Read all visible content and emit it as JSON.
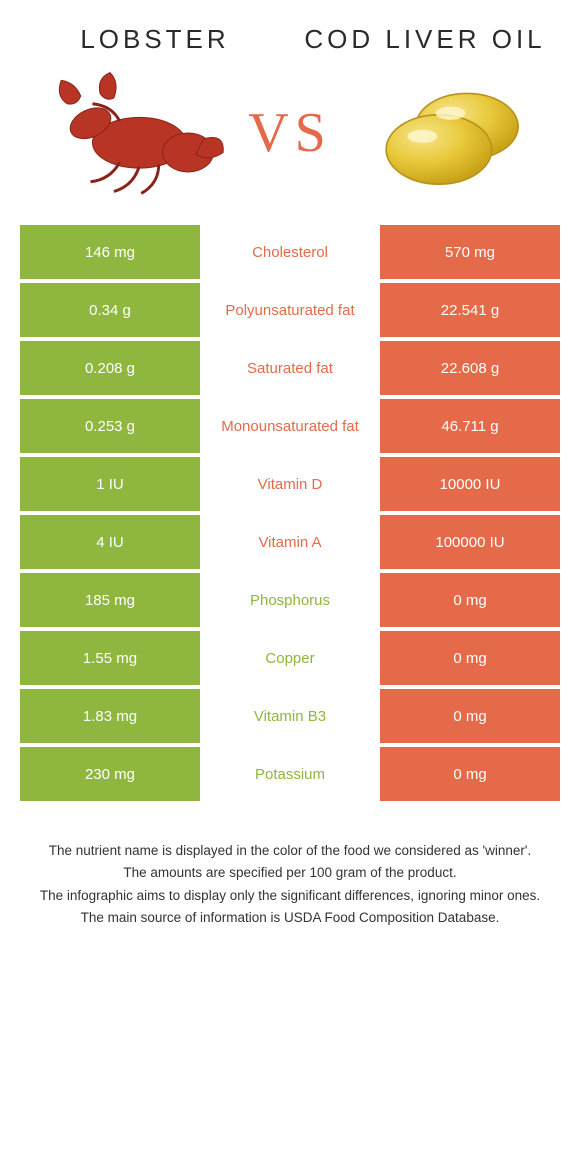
{
  "header": {
    "left_title": "Lobster",
    "right_title": "Cod liver oil",
    "vs": "VS"
  },
  "colors": {
    "green": "#8fb63f",
    "orange": "#e46a4a"
  },
  "rows": [
    {
      "left": "146 mg",
      "label": "Cholesterol",
      "right": "570 mg",
      "winner": "orange"
    },
    {
      "left": "0.34 g",
      "label": "Polyunsaturated fat",
      "right": "22.541 g",
      "winner": "orange"
    },
    {
      "left": "0.208 g",
      "label": "Saturated fat",
      "right": "22.608 g",
      "winner": "orange"
    },
    {
      "left": "0.253 g",
      "label": "Monounsaturated fat",
      "right": "46.711 g",
      "winner": "orange"
    },
    {
      "left": "1 IU",
      "label": "Vitamin D",
      "right": "10000 IU",
      "winner": "orange"
    },
    {
      "left": "4 IU",
      "label": "Vitamin A",
      "right": "100000 IU",
      "winner": "orange"
    },
    {
      "left": "185 mg",
      "label": "Phosphorus",
      "right": "0 mg",
      "winner": "green"
    },
    {
      "left": "1.55 mg",
      "label": "Copper",
      "right": "0 mg",
      "winner": "green"
    },
    {
      "left": "1.83 mg",
      "label": "Vitamin B3",
      "right": "0 mg",
      "winner": "green"
    },
    {
      "left": "230 mg",
      "label": "Potassium",
      "right": "0 mg",
      "winner": "green"
    }
  ],
  "footer": {
    "l1": "The nutrient name is displayed in the color of the food we considered as 'winner'.",
    "l2": "The amounts are specified per 100 gram of the product.",
    "l3": "The infographic aims to display only the significant differences, ignoring minor ones.",
    "l4": "The main source of information is USDA Food Composition Database."
  }
}
